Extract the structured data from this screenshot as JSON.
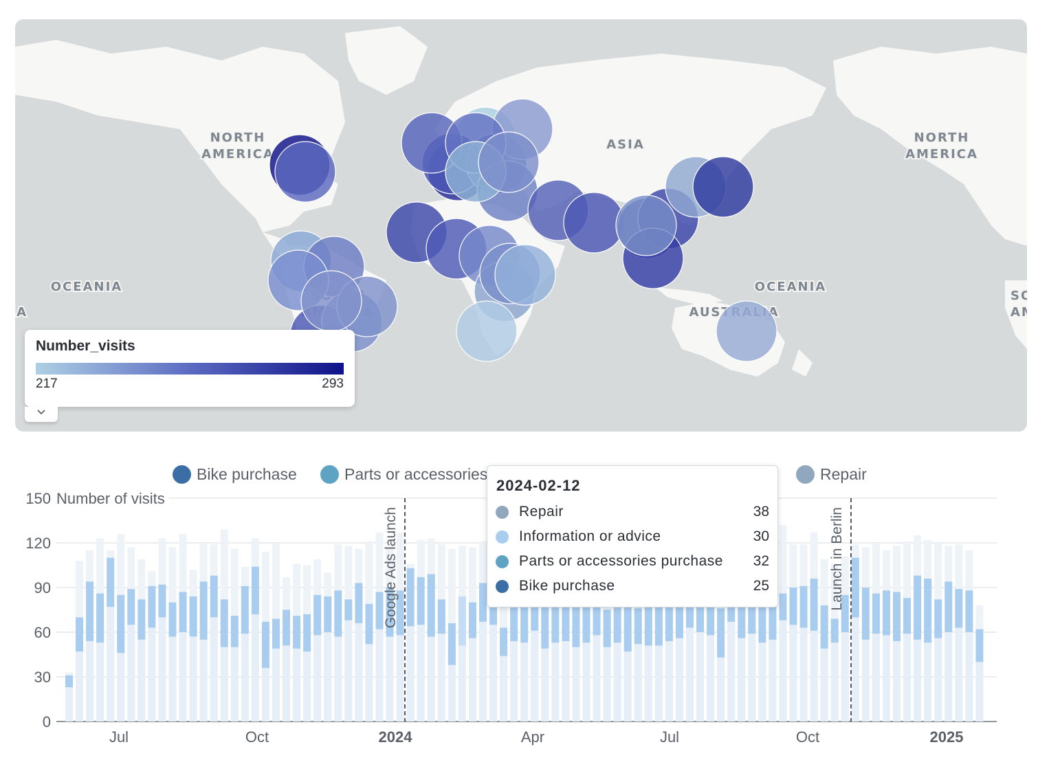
{
  "map": {
    "region_labels": [
      "NORTH AMERICA",
      "ASIA",
      "NORTH AMERICA",
      "OCEANIA",
      "OCEANIA",
      "AUSTRALIA",
      "SOUTH AMERICA",
      "AUSTRALIA",
      "SOUTH AMERICA"
    ],
    "legend": {
      "title": "Number_visits",
      "min": "217",
      "max": "293",
      "colors": [
        "#aed0e4",
        "#5b6bc2",
        "#0f1289"
      ]
    },
    "collapse_icon": "chevron-down-icon"
  },
  "chart_legend": [
    {
      "label": "Bike purchase",
      "color": "#3a6ea5"
    },
    {
      "label": "Parts or accessories purchase",
      "color": "#5fa3c4"
    },
    {
      "label": "Information or advice",
      "color": "#a9cdef"
    },
    {
      "label": "Repair",
      "color": "#91a7bd"
    }
  ],
  "tooltip": {
    "date": "2024-02-12",
    "rows": [
      {
        "label": "Repair",
        "value": "38",
        "color": "#91a7bd"
      },
      {
        "label": "Information or advice",
        "value": "30",
        "color": "#a9cdef"
      },
      {
        "label": "Parts or accessories purchase",
        "value": "32",
        "color": "#5fa3c4"
      },
      {
        "label": "Bike purchase",
        "value": "25",
        "color": "#3a6ea5"
      }
    ]
  },
  "chart_data": {
    "type": "bar",
    "ylabel": "Number of visits",
    "ylim": [
      0,
      150
    ],
    "yticks": [
      "0",
      "30",
      "60",
      "90",
      "120",
      "150"
    ],
    "xticks": [
      {
        "label": "Jul",
        "bold": false
      },
      {
        "label": "Oct",
        "bold": false
      },
      {
        "label": "2024",
        "bold": true
      },
      {
        "label": "Apr",
        "bold": false
      },
      {
        "label": "Jul",
        "bold": false
      },
      {
        "label": "Oct",
        "bold": false
      },
      {
        "label": "2025",
        "bold": true
      }
    ],
    "annotations": [
      "Google Ads launch",
      "Launch in Berlin"
    ],
    "highlighted_series": "Information or advice",
    "highlighted_ranges": [
      [
        23,
        31
      ],
      [
        47,
        70
      ],
      [
        54,
        94
      ],
      [
        53,
        86
      ],
      [
        77,
        110
      ],
      [
        46,
        85
      ],
      [
        65,
        89
      ],
      [
        55,
        82
      ],
      [
        63,
        91
      ],
      [
        70,
        92
      ],
      [
        57,
        80
      ],
      [
        60,
        87
      ],
      [
        57,
        84
      ],
      [
        55,
        94
      ],
      [
        70,
        98
      ],
      [
        50,
        82
      ],
      [
        50,
        71
      ],
      [
        59,
        91
      ],
      [
        72,
        104
      ],
      [
        36,
        67
      ],
      [
        49,
        69
      ],
      [
        51,
        75
      ],
      [
        49,
        71
      ],
      [
        47,
        72
      ],
      [
        58,
        85
      ],
      [
        60,
        84
      ],
      [
        57,
        88
      ],
      [
        68,
        82
      ],
      [
        66,
        93
      ],
      [
        52,
        79
      ],
      [
        62,
        87
      ],
      [
        57,
        90
      ],
      [
        58,
        88
      ],
      [
        64,
        103
      ],
      [
        65,
        97
      ],
      [
        57,
        99
      ],
      [
        59,
        82
      ],
      [
        38,
        66
      ],
      [
        51,
        84
      ],
      [
        56,
        80
      ],
      [
        67,
        93
      ],
      [
        65,
        89
      ],
      [
        44,
        63
      ],
      [
        54,
        89
      ],
      [
        53,
        88
      ],
      [
        61,
        89
      ],
      [
        49,
        79
      ],
      [
        53,
        77
      ],
      [
        54,
        86
      ],
      [
        50,
        84
      ],
      [
        53,
        80
      ],
      [
        58,
        81
      ],
      [
        50,
        75
      ],
      [
        53,
        90
      ],
      [
        47,
        80
      ],
      [
        52,
        76
      ],
      [
        51,
        80
      ],
      [
        51,
        86
      ],
      [
        54,
        84
      ],
      [
        56,
        85
      ],
      [
        63,
        88
      ],
      [
        60,
        77
      ],
      [
        58,
        82
      ],
      [
        43,
        76
      ],
      [
        67,
        86
      ],
      [
        56,
        86
      ],
      [
        59,
        88
      ],
      [
        53,
        86
      ],
      [
        55,
        80
      ],
      [
        68,
        86
      ],
      [
        65,
        90
      ],
      [
        63,
        91
      ],
      [
        61,
        96
      ],
      [
        49,
        78
      ],
      [
        53,
        69
      ],
      [
        60,
        85
      ],
      [
        70,
        110
      ],
      [
        55,
        90
      ],
      [
        59,
        86
      ],
      [
        58,
        88
      ],
      [
        54,
        87
      ],
      [
        59,
        83
      ],
      [
        55,
        98
      ],
      [
        53,
        96
      ],
      [
        56,
        82
      ],
      [
        60,
        94
      ],
      [
        63,
        89
      ],
      [
        60,
        88
      ],
      [
        40,
        62
      ]
    ],
    "total_heights": [
      33,
      108,
      115,
      123,
      115,
      126,
      117,
      109,
      101,
      123,
      117,
      126,
      102,
      120,
      119,
      129,
      116,
      104,
      123,
      114,
      120,
      97,
      106,
      105,
      109,
      100,
      119,
      118,
      116,
      121,
      127,
      117,
      127,
      106,
      122,
      123,
      119,
      116,
      118,
      117,
      121,
      116,
      131,
      117,
      116,
      122,
      117,
      121,
      127,
      124,
      116,
      115,
      111,
      121,
      122,
      107,
      116,
      106,
      114,
      120,
      109,
      112,
      99,
      123,
      104,
      105,
      114,
      119,
      122,
      132,
      119,
      119,
      127,
      109,
      106,
      111,
      119,
      117,
      120,
      115,
      118,
      121,
      125,
      122,
      120,
      118,
      119,
      115,
      78
    ]
  }
}
